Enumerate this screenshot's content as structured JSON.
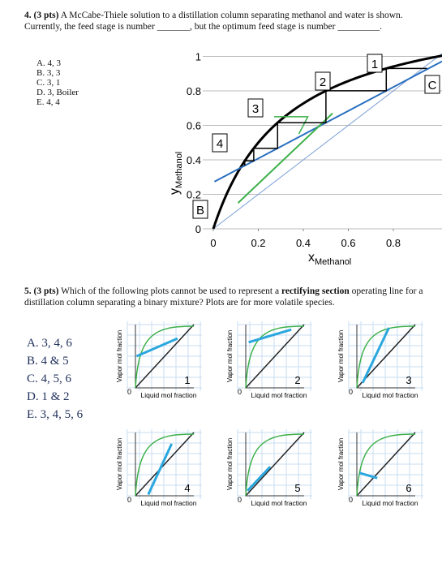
{
  "q4": {
    "number": "4. (3 pts)",
    "text": "A McCabe-Thiele solution to a distillation column separating methanol and water is shown. Currently, the feed stage is number _______, but the optimum feed stage is number _________.",
    "options": [
      "A. 4, 3",
      "B. 3, 3",
      "C. 3, 1",
      "D. 3, Boiler",
      "E. 4, 4"
    ],
    "figure": {
      "xlabel": "x",
      "xlabel_sub": "Methanol",
      "ylabel": "y",
      "ylabel_sub": "Methanol",
      "xticks": [
        0,
        0.2,
        0.4,
        0.6,
        0.8
      ],
      "yticks": [
        0,
        0.2,
        0.4,
        0.6,
        0.8,
        1
      ],
      "stages": [
        "1",
        "2",
        "3",
        "4",
        "B",
        "C"
      ]
    }
  },
  "q5": {
    "number": "5. (3 pts)",
    "text_before": "Which of the following plots cannot be used to represent a",
    "emphasis": "rectifying section",
    "text_after": "operating line for a distillation column separating a binary mixture? Plots are for more volatile species.",
    "options": [
      "A.  3, 4, 6",
      "B.  4 & 5",
      "C.  4, 5, 6",
      "D.  1 & 2",
      "E.  3, 4, 5, 6"
    ],
    "panels": [
      {
        "number": "1",
        "xlabel": "Liquid mol fraction",
        "ylabel": "Vapor mol fraction",
        "origin": "0"
      },
      {
        "number": "2",
        "xlabel": "Liquid mol fraction",
        "ylabel": "Vapor mol fraction",
        "origin": "0"
      },
      {
        "number": "3",
        "xlabel": "Liquid mol fraction",
        "ylabel": "Vapor mol fraction",
        "origin": "0"
      },
      {
        "number": "4",
        "xlabel": "Liquid mol fraction",
        "ylabel": "Vapor mol fraction",
        "origin": "0"
      },
      {
        "number": "5",
        "xlabel": "Liquid mol fraction",
        "ylabel": "Vapor mol fraction",
        "origin": "0"
      },
      {
        "number": "6",
        "xlabel": "Liquid mol fraction",
        "ylabel": "Vapor mol fraction",
        "origin": "0"
      }
    ]
  }
}
